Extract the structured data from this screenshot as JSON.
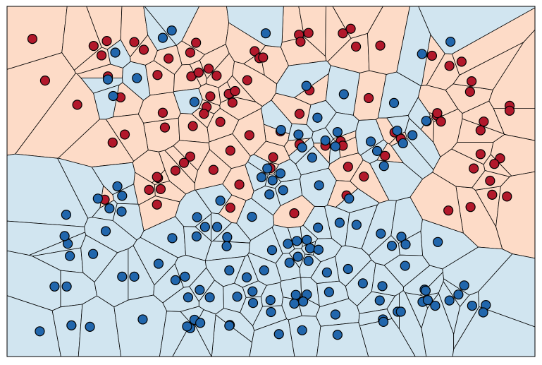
{
  "chart_data": {
    "type": "scatter",
    "title": "",
    "xlabel": "",
    "ylabel": "",
    "grid": false,
    "legend": "none",
    "xlim": [
      0,
      100
    ],
    "ylim": [
      0,
      100
    ],
    "class_colors": {
      "red": {
        "point": "#b2182b",
        "region": "#fddbc7"
      },
      "blue": {
        "point": "#2166ac",
        "region": "#d1e5f0"
      }
    },
    "edge_color": "#000000",
    "series": [
      {
        "class": "red",
        "x": [
          4.8,
          16.4,
          18.9,
          17.9,
          24.1,
          25.9,
          30.6,
          34.7,
          35.8,
          46.9,
          47.8,
          48.5,
          55.3,
          57.1,
          65.1,
          66.1,
          70.7,
          7.2,
          19.1,
          28.5,
          34.9,
          36.3,
          38.2,
          55.6,
          63.6,
          80.5,
          83.8,
          86.1,
          13.3,
          21.5,
          29.5,
          39.7,
          45.5,
          42.7,
          57.3,
          68.5,
          87.7,
          37.8,
          42.0,
          43.2,
          88.0,
          95.2,
          29.9,
          37.3,
          40.4,
          38.5,
          51.8,
          55.4,
          81.4,
          95.2,
          22.3,
          35.2,
          42.3,
          55.4,
          63.2,
          73.4,
          79.5,
          89.7,
          34.7,
          50.4,
          45.9,
          74.6,
          89.7,
          20.0,
          33.5,
          64.6,
          81.5,
          82.2,
          90.3,
          28.6,
          31.9,
          44.0,
          49.9,
          39.1,
          18.5,
          87.8,
          91.9,
          63.6,
          93.4,
          71.6,
          60.3,
          67.6,
          88.4,
          92.3,
          64.3,
          94.7,
          29.1,
          26.9,
          83.6,
          28.4,
          91.5,
          42.3,
          54.4,
          28.4
        ],
        "y": [
          90.7,
          88.7,
          90.1,
          86.0,
          89.8,
          87.6,
          85.1,
          86.8,
          89.6,
          87.2,
          85.2,
          85.4,
          91.9,
          92.4,
          93.6,
          88.5,
          88.8,
          78.8,
          80.0,
          80.4,
          80.0,
          81.1,
          82.2,
          89.9,
          92.3,
          85.9,
          83.0,
          84.2,
          71.9,
          74.0,
          69.6,
          80.2,
          78.9,
          72.5,
          76.0,
          73.8,
          75.6,
          71.3,
          75.0,
          75.8,
          78.6,
          71.6,
          65.4,
          69.3,
          67.0,
          74.3,
          64.3,
          69.3,
          68.8,
          70.2,
          63.4,
          65.8,
          58.8,
          60.6,
          61.5,
          64.0,
          67.2,
          64.6,
          57.1,
          56.9,
          63.2,
          62.2,
          57.8,
          61.1,
          55.3,
          54.2,
          69.5,
          67.1,
          67.1,
          51.0,
          53.1,
          49.1,
          53.8,
          53.3,
          44.8,
          42.7,
          46.2,
          60.2,
          56.6,
          57.3,
          60.2,
          51.4,
          53.7,
          55.0,
          46.0,
          45.7,
          47.8,
          47.6,
          41.7,
          51.3,
          50.2,
          42.5,
          40.9,
          43.4
        ]
      },
      {
        "class": "blue",
        "x": [
          31.2,
          49.0,
          29.5,
          20.5,
          24.6,
          19.1,
          20.1,
          35.5,
          56.7,
          63.8,
          84.0,
          78.6,
          73.3,
          79.4,
          73.9,
          76.8,
          58.8,
          62.6,
          51.9,
          55.2,
          60.3,
          62.2,
          68.9,
          71.4,
          75.0,
          70.1,
          55.9,
          57.8,
          51.8,
          49.3,
          48.2,
          50.3,
          52.3,
          59.1,
          20.9,
          21.8,
          17.2,
          19.4,
          11.2,
          21.7,
          49.7,
          40.4,
          36.0,
          37.5,
          39.8,
          46.4,
          58.9,
          63.0,
          66.2,
          64.8,
          70.8,
          74.7,
          75.5,
          72.9,
          75.4,
          81.6,
          11.5,
          11.9,
          16.3,
          10.9,
          18.7,
          31.3,
          35.9,
          41.7,
          41.6,
          50.2,
          53.2,
          54.9,
          56.8,
          57.4,
          59.0,
          55.1,
          57.1,
          53.5,
          64.6,
          60.6,
          48.7,
          45.4,
          46.5,
          9.0,
          11.3,
          21.8,
          24.1,
          28.7,
          33.7,
          42.1,
          31.9,
          36.5,
          38.4,
          34.3,
          43.6,
          46.6,
          49.9,
          54.7,
          54.4,
          56.8,
          56.1,
          50.0,
          61.0,
          62.2,
          70.6,
          74.0,
          74.6,
          78.7,
          79.7,
          81.1,
          85.5,
          88.1,
          86.6,
          67.4,
          71.1,
          79.1,
          90.7,
          90.2,
          79.3,
          83.8,
          6.2,
          12.2,
          15.7,
          25.7,
          35.5,
          42.2,
          42.1,
          51.5,
          55.9,
          62.6,
          71.2,
          71.3,
          34.7,
          34.1,
          36.6
        ],
        "y": [
          93.1,
          92.3,
          91.0,
          86.8,
          79.5,
          79.1,
          74.4,
          72.7,
          77.3,
          74.9,
          89.9,
          86.4,
          72.4,
          67.3,
          64.5,
          63.2,
          68.2,
          64.1,
          64.7,
          63.4,
          61.7,
          60.0,
          61.4,
          54.4,
          60.9,
          58.7,
          59.7,
          56.8,
          52.3,
          53.7,
          51.2,
          50.3,
          47.5,
          48.9,
          48.6,
          45.9,
          45.1,
          42.3,
          40.5,
          41.4,
          46.3,
          44.5,
          39.8,
          37.0,
          37.0,
          39.9,
          36.8,
          38.2,
          37.6,
          45.1,
          35.1,
          34.2,
          32.0,
          31.6,
          25.9,
          32.7,
          32.2,
          28.7,
          29.3,
          34.4,
          35.8,
          33.8,
          34.3,
          34.1,
          31.5,
          30.4,
          32.2,
          33.0,
          33.3,
          30.9,
          30.5,
          28.5,
          27.3,
          26.8,
          25.0,
          24.0,
          24.6,
          22.6,
          18.6,
          20.0,
          20.0,
          22.8,
          22.8,
          26.5,
          22.8,
          24.6,
          21.8,
          19.0,
          16.9,
          16.9,
          17.1,
          15.3,
          16.1,
          17.6,
          15.1,
          17.7,
          15.7,
          12.7,
          18.4,
          12.0,
          16.0,
          12.8,
          12.8,
          15.6,
          16.1,
          14.5,
          17.7,
          14.5,
          20.3,
          20.9,
          20.1,
          19.1,
          14.7,
          12.6,
          18.8,
          16.0,
          7.2,
          8.9,
          8.5,
          10.6,
          10.5,
          9.0,
          8.8,
          6.4,
          7.5,
          6.2,
          10.6,
          9.9,
          8.1,
          8.6,
          9.6
        ]
      }
    ]
  }
}
